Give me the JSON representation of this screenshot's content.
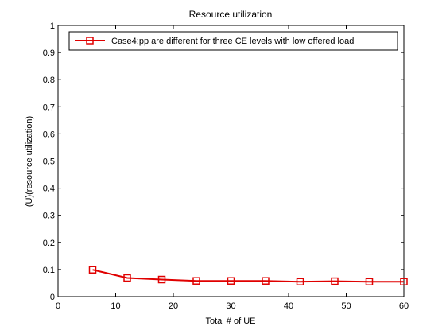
{
  "chart_data": {
    "type": "line",
    "title": "Resource utilization",
    "xlabel": "Total # of UE",
    "ylabel": "(U)(resource utilization)",
    "xlim": [
      0,
      60
    ],
    "ylim": [
      0,
      1
    ],
    "x_ticks": [
      0,
      10,
      20,
      30,
      40,
      50,
      60
    ],
    "y_ticks": [
      0,
      0.1,
      0.2,
      0.3,
      0.4,
      0.5,
      0.6,
      0.7,
      0.8,
      0.9,
      1
    ],
    "x_tick_labels": [
      "0",
      "10",
      "20",
      "30",
      "40",
      "50",
      "60"
    ],
    "y_tick_labels": [
      "0",
      "0.1",
      "0.2",
      "0.3",
      "0.4",
      "0.5",
      "0.6",
      "0.7",
      "0.8",
      "0.9",
      "1"
    ],
    "grid": false,
    "legend_position": "top",
    "series": [
      {
        "name": "Case4:pp are different for three CE levels with low offered load",
        "color": "#e00000",
        "marker": "square",
        "x": [
          6,
          12,
          18,
          24,
          30,
          36,
          42,
          48,
          54,
          60
        ],
        "y": [
          0.099,
          0.069,
          0.063,
          0.058,
          0.058,
          0.058,
          0.055,
          0.057,
          0.055,
          0.055
        ]
      }
    ]
  }
}
